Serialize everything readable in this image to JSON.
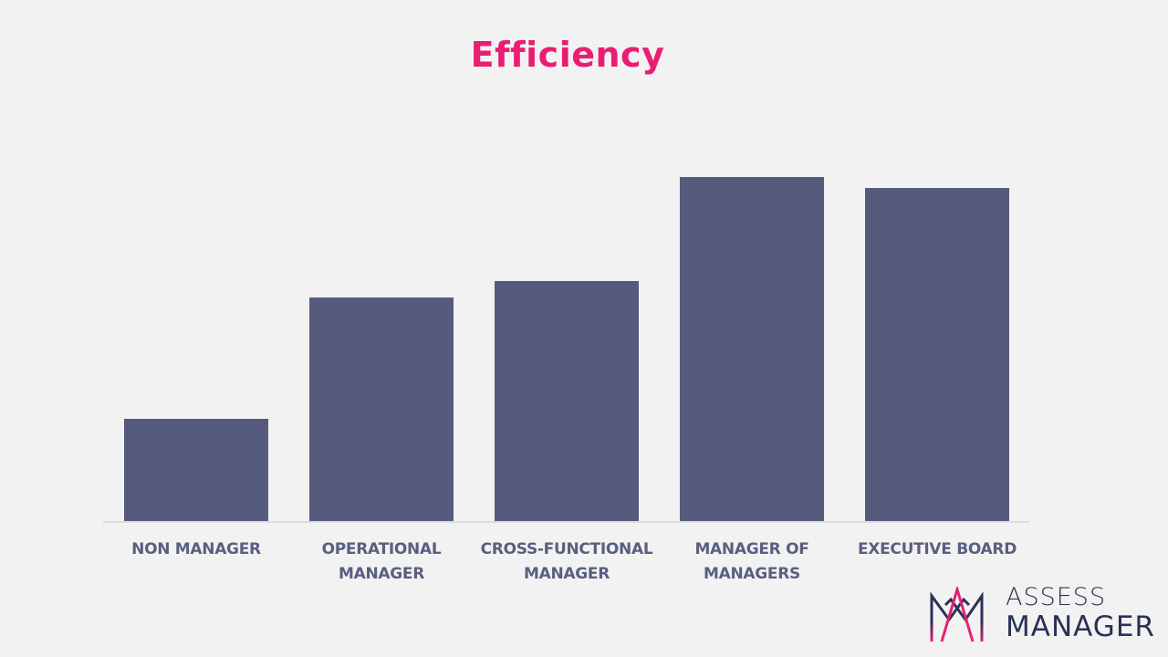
{
  "title": "Efficiency",
  "chart_data": {
    "type": "bar",
    "title": "Efficiency",
    "categories": [
      "NON MANAGER",
      "OPERATIONAL MANAGER",
      "CROSS-FUNCTIONAL MANAGER",
      "MANAGER OF MANAGERS",
      "EXECUTIVE BOARD"
    ],
    "values": [
      112,
      245,
      263,
      377,
      365
    ],
    "xlabel": "",
    "ylabel": "",
    "grid": false,
    "legend": null,
    "bar_color": "#565b7e",
    "note": "No y-axis values shown; values are relative bar heights in pixels"
  },
  "labels": [
    [
      "NON MANAGER"
    ],
    [
      "OPERATIONAL",
      "MANAGER"
    ],
    [
      "CROSS-FUNCTIONAL",
      "MANAGER"
    ],
    [
      "MANAGER OF",
      "MANAGERS"
    ],
    [
      "EXECUTIVE BOARD"
    ]
  ],
  "logo": {
    "line1": "ASSESS",
    "line2": "MANAGER"
  },
  "colors": {
    "title": "#e91e73",
    "bar": "#565b7e",
    "background": "#f2f2f2",
    "logo_text": "#2a3156"
  }
}
